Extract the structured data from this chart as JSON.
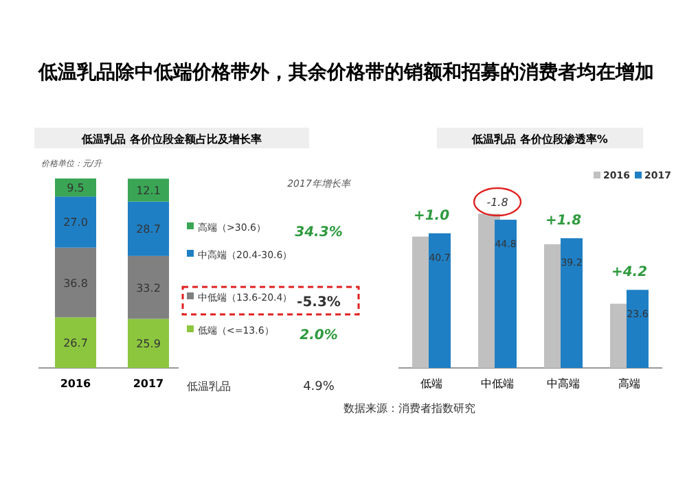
{
  "chart_data": [
    {
      "type": "other",
      "title": "低温乳品除中低端价格带外，其余价格带的销额和招募的消费者均在增加",
      "annotations": [
        "数据来源：消费者指数研究"
      ]
    },
    {
      "type": "bar",
      "stacked": true,
      "title": "低温乳品  各价位段金额占比及增长率",
      "categories": [
        "2016",
        "2017"
      ],
      "data_labels": true,
      "legend": "right",
      "series": [
        {
          "name": "低端（<=13.6）",
          "color": "#8cc63f",
          "values": [
            26.7,
            25.9
          ]
        },
        {
          "name": "中低端（13.6-20.4）",
          "color": "#808080",
          "values": [
            36.8,
            33.2
          ]
        },
        {
          "name": "中高端（20.4-30.6）",
          "color": "#1f7fc4",
          "values": [
            27.0,
            28.7
          ],
          "value_labels": [
            "27.0",
            "28.7"
          ]
        },
        {
          "name": "高端（>30.6）",
          "color": "#3aa655",
          "values": [
            9.5,
            12.1
          ]
        }
      ],
      "annotations": [
        "价格单位：元/升",
        "2017年增长率",
        "34.3%",
        "-5.3%",
        "2.0%",
        "低温乳品",
        "4.9%"
      ]
    },
    {
      "type": "bar",
      "title": "低温乳品  各价位段渗透率%",
      "categories": [
        "低端",
        "中低端",
        "中高端",
        "高端"
      ],
      "legend": "top right",
      "series": [
        {
          "name": "2016",
          "color": "#c0c0c0",
          "values": [
            39.7,
            46.6,
            37.4,
            19.4
          ]
        },
        {
          "name": "2017",
          "color": "#1f7fc4",
          "values": [
            40.7,
            44.8,
            39.2,
            23.6
          ],
          "value_labels": [
            "40.7",
            "44.8",
            "39.2",
            "23.6"
          ]
        }
      ],
      "annotations": [
        {
          "text": "+1.0",
          "x": "低端",
          "y": 40.7
        },
        {
          "text": "-1.8",
          "x": "中低端",
          "y": 44.8
        },
        {
          "text": "+1.8",
          "x": "中高端",
          "y": 39.2
        },
        {
          "text": "+4.2",
          "x": "高端",
          "y": 23.6
        }
      ]
    }
  ]
}
